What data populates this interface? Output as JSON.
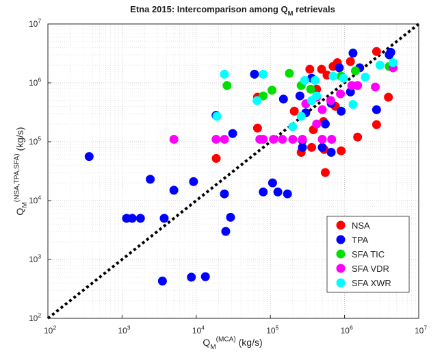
{
  "chart_data": {
    "type": "scatter",
    "title": [
      "Etna 2015: Intercomparison among Q",
      "M",
      " retrievals"
    ],
    "xlabel": [
      "Q",
      "M",
      "(MCA)",
      " (kg/s)"
    ],
    "ylabel": [
      "Q",
      "M",
      "(NSA,TPA,SFA)",
      " (kg/s)"
    ],
    "xscale": "log",
    "yscale": "log",
    "grid": true,
    "minor_grid": true,
    "diagonal": true,
    "legend": "southeast",
    "xlim": [
      100,
      10000000
    ],
    "ylim": [
      100,
      10000000
    ],
    "xticks": [
      {
        "value": 100,
        "label": [
          "10",
          "2"
        ]
      },
      {
        "value": 1000,
        "label": [
          "10",
          "3"
        ]
      },
      {
        "value": 10000,
        "label": [
          "10",
          "4"
        ]
      },
      {
        "value": 100000,
        "label": [
          "10",
          "5"
        ]
      },
      {
        "value": 1000000,
        "label": [
          "10",
          "6"
        ]
      },
      {
        "value": 10000000,
        "label": [
          "10",
          "7"
        ]
      }
    ],
    "yticks": [
      {
        "value": 100,
        "label": [
          "10",
          "2"
        ]
      },
      {
        "value": 1000,
        "label": [
          "10",
          "3"
        ]
      },
      {
        "value": 10000,
        "label": [
          "10",
          "4"
        ]
      },
      {
        "value": 100000,
        "label": [
          "10",
          "5"
        ]
      },
      {
        "value": 1000000,
        "label": [
          "10",
          "6"
        ]
      },
      {
        "value": 10000000,
        "label": [
          "10",
          "7"
        ]
      }
    ],
    "series": [
      {
        "name": "NSA",
        "color": "#ff0000",
        "x": [
          18600,
          67000,
          67000,
          260000,
          360000,
          210000,
          340000,
          490000,
          700000,
          800000,
          1200000,
          580000,
          530000,
          550000,
          900000,
          1500000,
          2700000,
          3900000,
          380000,
          750000,
          2700000,
          420000,
          520000
        ],
        "values": [
          52000,
          170000,
          570000,
          66000,
          80000,
          330000,
          1700000,
          1700000,
          1900000,
          2200000,
          2300000,
          1350000,
          74000,
          30000,
          70000,
          120000,
          195000,
          570000,
          160000,
          400000,
          3400000,
          780000,
          220000
        ]
      },
      {
        "name": "TPA",
        "color": "#0000ff",
        "x": [
          360,
          1150,
          1370,
          1770,
          2400,
          5000,
          9200,
          3700,
          3500,
          8600,
          13300,
          24000,
          25000,
          29000,
          31000,
          18500,
          80000,
          107000,
          126000,
          170000,
          61000,
          150000,
          250000,
          300000,
          500000,
          550000,
          660000,
          900000,
          1200000,
          1300000,
          2700000,
          4000000,
          4200000,
          1600000,
          850000,
          270000,
          270000,
          360000,
          660000
        ],
        "values": [
          56000,
          5000,
          5000,
          5000,
          23000,
          15000,
          21000,
          5000,
          430,
          500,
          510,
          13000,
          3000,
          5200,
          138000,
          280000,
          14000,
          20000,
          14000,
          13000,
          1400000,
          530000,
          600000,
          310000,
          80000,
          200000,
          66000,
          330000,
          700000,
          3200000,
          350000,
          3000000,
          3300000,
          1800000,
          1800000,
          105000,
          80000,
          1200000,
          450000
        ]
      },
      {
        "name": "SFA TIC",
        "color": "#00e000",
        "x": [
          26000,
          80000,
          105000,
          180000,
          260000,
          350000,
          1400000,
          4000000,
          900000
        ],
        "values": [
          900000,
          600000,
          750000,
          1450000,
          900000,
          780000,
          1600000,
          1900000,
          1300000
        ]
      },
      {
        "name": "SFA VDR",
        "color": "#ff00ff",
        "x": [
          5000,
          18500,
          24000,
          72000,
          80000,
          110000,
          145000,
          200000,
          270000,
          420000,
          500000,
          650000,
          880000,
          1250000,
          1500000,
          2600000,
          4500000,
          300000,
          420000,
          670000,
          500000
        ],
        "values": [
          110000,
          110000,
          110000,
          110000,
          110000,
          110000,
          110000,
          110000,
          110000,
          200000,
          350000,
          500000,
          650000,
          900000,
          900000,
          850000,
          1800000,
          440000,
          570000,
          110000,
          110000
        ]
      },
      {
        "name": "SFA XWR",
        "color": "#00ffff",
        "x": [
          24000,
          19000,
          66000,
          80000,
          200000,
          290000,
          400000,
          700000,
          970000,
          1300000,
          1900000,
          3000000,
          4500000,
          420000,
          260000,
          360000
        ],
        "values": [
          1400000,
          270000,
          500000,
          1400000,
          180000,
          1100000,
          1100000,
          1300000,
          1200000,
          430000,
          1250000,
          2000000,
          2200000,
          600000,
          270000,
          500000
        ]
      }
    ]
  }
}
